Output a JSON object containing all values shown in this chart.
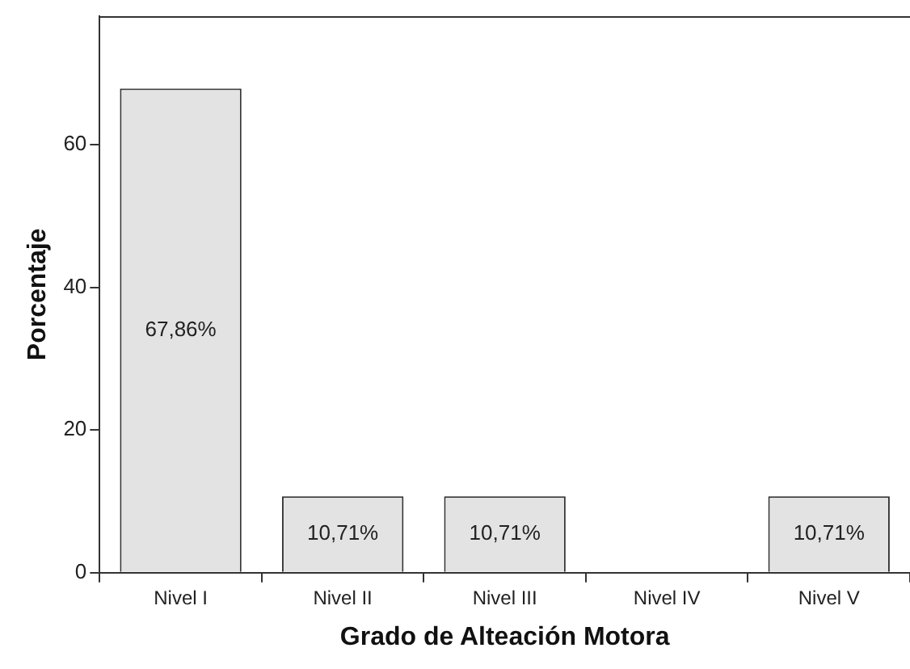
{
  "chart_data": {
    "type": "bar",
    "xlabel": "Grado de Alteación Motora",
    "ylabel": "Porcentaje",
    "categories": [
      "Nivel I",
      "Nivel II",
      "Nivel III",
      "Nivel IV",
      "Nivel V"
    ],
    "values": [
      67.86,
      10.71,
      10.71,
      0,
      10.71
    ],
    "value_labels": [
      "67,86%",
      "10,71%",
      "10,71%",
      null,
      "10,71%"
    ],
    "color": "#e3e3e3",
    "ylim": [
      0,
      78
    ],
    "yticks": [
      0,
      20,
      40,
      60
    ],
    "grid": false,
    "legend": false
  }
}
